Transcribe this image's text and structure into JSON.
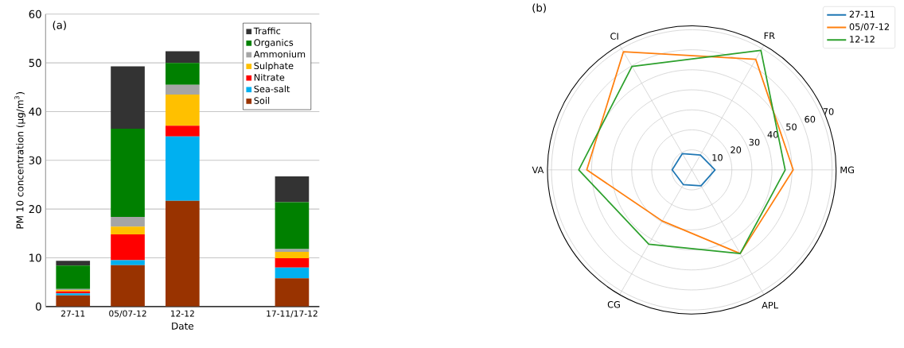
{
  "chart_data": [
    {
      "type": "bar",
      "stacked": true,
      "xlabel": "Date",
      "ylabel": "PM 10 concentration (µg/m$^{3}$)",
      "annotations": [
        "(a)"
      ],
      "categories": [
        "27-11",
        "05/07-12",
        "12-12",
        null,
        "17-11/17-12"
      ],
      "series": [
        {
          "name": "Soil",
          "color": "#993300",
          "values": [
            2.3,
            8.5,
            21.7,
            null,
            5.8
          ]
        },
        {
          "name": "Sea-salt",
          "color": "#00b0f0",
          "values": [
            0.4,
            1.0,
            13.2,
            null,
            2.2
          ]
        },
        {
          "name": "Nitrate",
          "color": "#ff0000",
          "values": [
            0.4,
            5.3,
            2.2,
            null,
            1.9
          ]
        },
        {
          "name": "Sulphate",
          "color": "#ffc000",
          "values": [
            0.3,
            1.6,
            6.4,
            null,
            1.3
          ]
        },
        {
          "name": "Ammonium",
          "color": "#a5a5a5",
          "values": [
            0.2,
            2.0,
            2.0,
            null,
            0.6
          ]
        },
        {
          "name": "Organics",
          "color": "#008000",
          "values": [
            4.8,
            18.1,
            4.5,
            null,
            9.6
          ]
        },
        {
          "name": "Traffic",
          "color": "#333333",
          "values": [
            1.0,
            12.8,
            2.4,
            null,
            5.3
          ]
        }
      ],
      "ylim": [
        0,
        60
      ],
      "yticks": [
        0,
        10,
        20,
        30,
        40,
        50,
        60
      ],
      "grid": "y",
      "legend": "top right"
    },
    {
      "type": "radar",
      "annotations": [
        "(b)"
      ],
      "categories": [
        "FR",
        "MG",
        "APL",
        "CG",
        "VA",
        "CI"
      ],
      "series": [
        {
          "name": "27-11",
          "color": "#1f77b4",
          "values": [
            8.6,
            11.6,
            9.2,
            8.5,
            9.8,
            9.4
          ]
        },
        {
          "name": "05/07-12",
          "color": "#ff7f0e",
          "values": [
            63.8,
            50.6,
            48.3,
            29.5,
            52.4,
            68.2
          ]
        },
        {
          "name": "12-12",
          "color": "#2ca02c",
          "values": [
            69.0,
            46.6,
            48.3,
            42.9,
            56.4,
            59.7
          ]
        }
      ],
      "ylim": [
        0,
        72
      ],
      "yticks": [
        10,
        20,
        30,
        40,
        50,
        60,
        70
      ],
      "grid": true,
      "legend": "top right"
    }
  ]
}
